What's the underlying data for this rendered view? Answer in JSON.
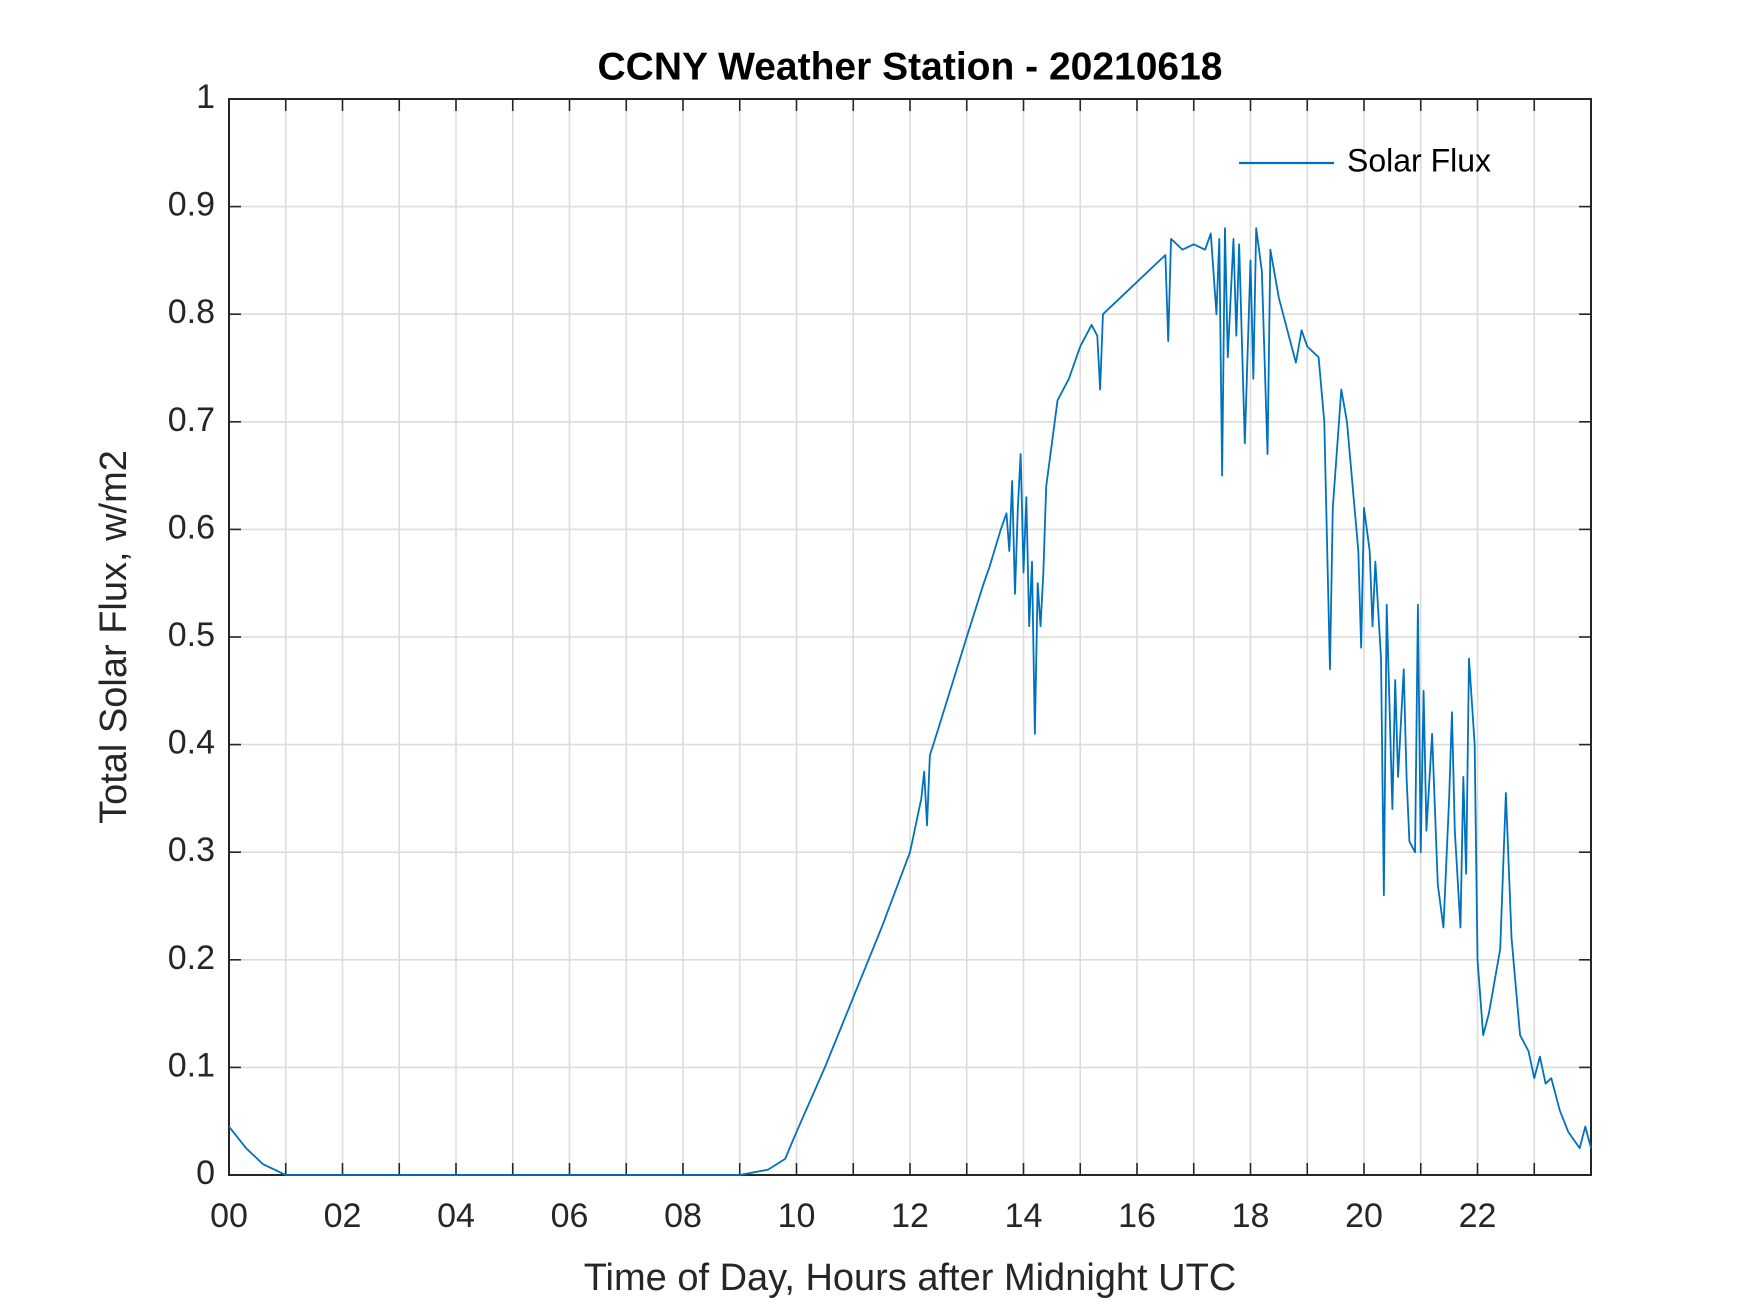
{
  "chart_data": {
    "type": "line",
    "title": "CCNY Weather Station - 20210618",
    "x_label": "Time of Day, Hours after Midnight UTC",
    "y_label": "Total Solar Flux, w/m2",
    "xlim": [
      0,
      24
    ],
    "ylim": [
      0,
      1
    ],
    "xticks": [
      {
        "value": 0,
        "label": "00"
      },
      {
        "value": 2,
        "label": "02"
      },
      {
        "value": 4,
        "label": "04"
      },
      {
        "value": 6,
        "label": "06"
      },
      {
        "value": 8,
        "label": "08"
      },
      10,
      12,
      14,
      16,
      18,
      20,
      22
    ],
    "xminor_ticks": [
      1,
      3,
      5,
      7,
      9,
      11,
      13,
      15,
      17,
      19,
      21,
      23
    ],
    "yticks": [
      0,
      0.1,
      0.2,
      0.3,
      0.4,
      0.5,
      0.6,
      0.7,
      0.8,
      0.9,
      1
    ],
    "grid": true,
    "legend": "upper right",
    "x": [
      0,
      0.3,
      0.6,
      1.0,
      9.0,
      9.5,
      9.8,
      10.0,
      10.5,
      11.0,
      11.5,
      12.0,
      12.2,
      12.25,
      12.3,
      12.35,
      12.5,
      13.0,
      13.3,
      13.4,
      13.6,
      13.7,
      13.75,
      13.8,
      13.85,
      13.9,
      13.95,
      14.0,
      14.05,
      14.1,
      14.15,
      14.2,
      14.25,
      14.3,
      14.35,
      14.4,
      14.5,
      14.6,
      14.8,
      15.0,
      15.2,
      15.3,
      15.35,
      15.4,
      15.6,
      16.0,
      16.5,
      16.55,
      16.6,
      16.8,
      17.0,
      17.2,
      17.3,
      17.4,
      17.45,
      17.5,
      17.55,
      17.6,
      17.7,
      17.75,
      17.8,
      17.9,
      18.0,
      18.05,
      18.1,
      18.2,
      18.3,
      18.35,
      18.5,
      18.7,
      18.8,
      18.9,
      19.0,
      19.2,
      19.3,
      19.4,
      19.45,
      19.6,
      19.7,
      19.8,
      19.9,
      19.95,
      20.0,
      20.1,
      20.15,
      20.2,
      20.3,
      20.35,
      20.4,
      20.5,
      20.55,
      20.6,
      20.7,
      20.75,
      20.8,
      20.9,
      20.95,
      21.0,
      21.05,
      21.1,
      21.2,
      21.3,
      21.4,
      21.5,
      21.55,
      21.6,
      21.7,
      21.75,
      21.8,
      21.85,
      21.95,
      22.0,
      22.1,
      22.2,
      22.4,
      22.5,
      22.6,
      22.75,
      22.9,
      23.0,
      23.1,
      23.2,
      23.3,
      23.45,
      23.6,
      23.8,
      23.9,
      24.0
    ],
    "series": [
      {
        "name": "Solar Flux",
        "color": "#0072bd",
        "values": [
          0.045,
          0.025,
          0.01,
          0.0,
          0.0,
          0.005,
          0.015,
          0.04,
          0.1,
          0.165,
          0.23,
          0.3,
          0.35,
          0.375,
          0.325,
          0.39,
          0.415,
          0.5,
          0.55,
          0.565,
          0.6,
          0.615,
          0.58,
          0.645,
          0.54,
          0.62,
          0.67,
          0.56,
          0.63,
          0.51,
          0.57,
          0.41,
          0.55,
          0.51,
          0.56,
          0.64,
          0.68,
          0.72,
          0.74,
          0.77,
          0.79,
          0.78,
          0.73,
          0.8,
          0.81,
          0.83,
          0.855,
          0.775,
          0.87,
          0.86,
          0.865,
          0.86,
          0.875,
          0.8,
          0.87,
          0.65,
          0.88,
          0.76,
          0.87,
          0.78,
          0.865,
          0.68,
          0.85,
          0.74,
          0.88,
          0.84,
          0.67,
          0.86,
          0.815,
          0.775,
          0.755,
          0.785,
          0.77,
          0.76,
          0.7,
          0.47,
          0.62,
          0.73,
          0.7,
          0.64,
          0.58,
          0.49,
          0.62,
          0.58,
          0.51,
          0.57,
          0.48,
          0.26,
          0.53,
          0.34,
          0.46,
          0.37,
          0.47,
          0.37,
          0.31,
          0.3,
          0.53,
          0.3,
          0.45,
          0.32,
          0.41,
          0.27,
          0.23,
          0.35,
          0.43,
          0.32,
          0.23,
          0.37,
          0.28,
          0.48,
          0.4,
          0.2,
          0.13,
          0.15,
          0.21,
          0.355,
          0.22,
          0.13,
          0.115,
          0.09,
          0.11,
          0.085,
          0.09,
          0.06,
          0.04,
          0.025,
          0.045,
          0.025
        ]
      }
    ]
  }
}
